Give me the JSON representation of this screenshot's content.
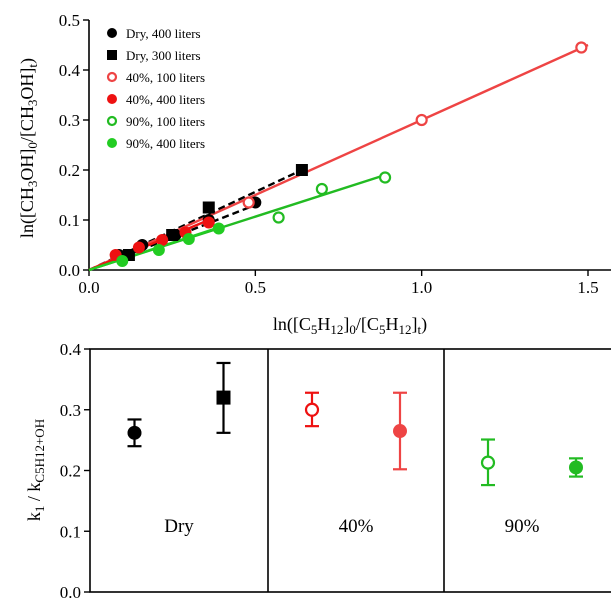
{
  "chart_data": [
    {
      "type": "scatter",
      "xlabel": "ln([C5H12]0/[C5H12]t)",
      "ylabel": "ln([CH3OH]0/[CH3OH]t)",
      "xlim": [
        0,
        1.6
      ],
      "ylim": [
        0,
        0.5
      ],
      "x_ticks": [
        "0.0",
        "0.5",
        "1.0",
        "1.5"
      ],
      "y_ticks": [
        "0.0",
        "0.1",
        "0.2",
        "0.3",
        "0.4",
        "0.5"
      ],
      "legend_placement": "top-left",
      "series": [
        {
          "name": "Dry, 400 liters",
          "marker": "circle-filled",
          "color": "#000000",
          "line": "dashed",
          "x": [
            0.09,
            0.16,
            0.26,
            0.36,
            0.5
          ],
          "y": [
            0.03,
            0.05,
            0.07,
            0.1,
            0.135
          ],
          "fit": [
            [
              0.0,
              0.0
            ],
            [
              0.5,
              0.13
            ]
          ]
        },
        {
          "name": "Dry, 300 liters",
          "marker": "square-filled",
          "color": "#000000",
          "line": "dashed",
          "x": [
            0.12,
            0.25,
            0.36,
            0.64
          ],
          "y": [
            0.03,
            0.07,
            0.125,
            0.2
          ],
          "fit": [
            [
              0.0,
              0.0
            ],
            [
              0.64,
              0.2
            ]
          ]
        },
        {
          "name": "40%, 100 liters",
          "marker": "circle-open",
          "color": "#ee4444",
          "line": "solid",
          "x": [
            0.48,
            1.0,
            1.48
          ],
          "y": [
            0.135,
            0.3,
            0.445
          ],
          "fit": [
            [
              0.0,
              0.0
            ],
            [
              1.5,
              0.45
            ]
          ]
        },
        {
          "name": "40%, 400 liters",
          "marker": "circle-filled",
          "color": "#ee1111",
          "line": "solid",
          "x": [
            0.08,
            0.15,
            0.22,
            0.29,
            0.36
          ],
          "y": [
            0.03,
            0.045,
            0.06,
            0.075,
            0.095
          ],
          "fit": [
            [
              0.0,
              0.0
            ],
            [
              0.36,
              0.1
            ]
          ]
        },
        {
          "name": "90%, 100 liters",
          "marker": "circle-open",
          "color": "#22bb22",
          "line": "solid",
          "x": [
            0.57,
            0.7,
            0.89
          ],
          "y": [
            0.105,
            0.162,
            0.185
          ],
          "fit": [
            [
              0.0,
              0.0
            ],
            [
              0.89,
              0.19
            ]
          ]
        },
        {
          "name": "90%, 400 liters",
          "marker": "circle-filled",
          "color": "#22cc22",
          "line": "solid",
          "x": [
            0.1,
            0.21,
            0.3,
            0.39
          ],
          "y": [
            0.018,
            0.04,
            0.062,
            0.083
          ],
          "fit": [
            [
              0.0,
              0.0
            ],
            [
              0.39,
              0.085
            ]
          ]
        }
      ]
    },
    {
      "type": "scatter",
      "ylabel": "k1 / kC5H12+OH",
      "ylim": [
        0.0,
        0.4
      ],
      "y_ticks": [
        "0.0",
        "0.1",
        "0.2",
        "0.3",
        "0.4"
      ],
      "groups": [
        "Dry",
        "40%",
        "90%"
      ],
      "points": [
        {
          "group": "Dry",
          "marker": "circle-filled",
          "color": "#000000",
          "value": 0.262,
          "err_low": 0.24,
          "err_high": 0.284
        },
        {
          "group": "Dry",
          "marker": "square-filled",
          "color": "#000000",
          "value": 0.32,
          "err_low": 0.262,
          "err_high": 0.377
        },
        {
          "group": "40%",
          "marker": "circle-open",
          "color": "#ee1111",
          "value": 0.3,
          "err_low": 0.273,
          "err_high": 0.328
        },
        {
          "group": "40%",
          "marker": "circle-filled",
          "color": "#ee4444",
          "value": 0.265,
          "err_low": 0.202,
          "err_high": 0.328
        },
        {
          "group": "90%",
          "marker": "circle-open",
          "color": "#22bb22",
          "value": 0.213,
          "err_low": 0.176,
          "err_high": 0.251
        },
        {
          "group": "90%",
          "marker": "circle-filled",
          "color": "#22bb22",
          "value": 0.205,
          "err_low": 0.19,
          "err_high": 0.22
        }
      ]
    }
  ]
}
